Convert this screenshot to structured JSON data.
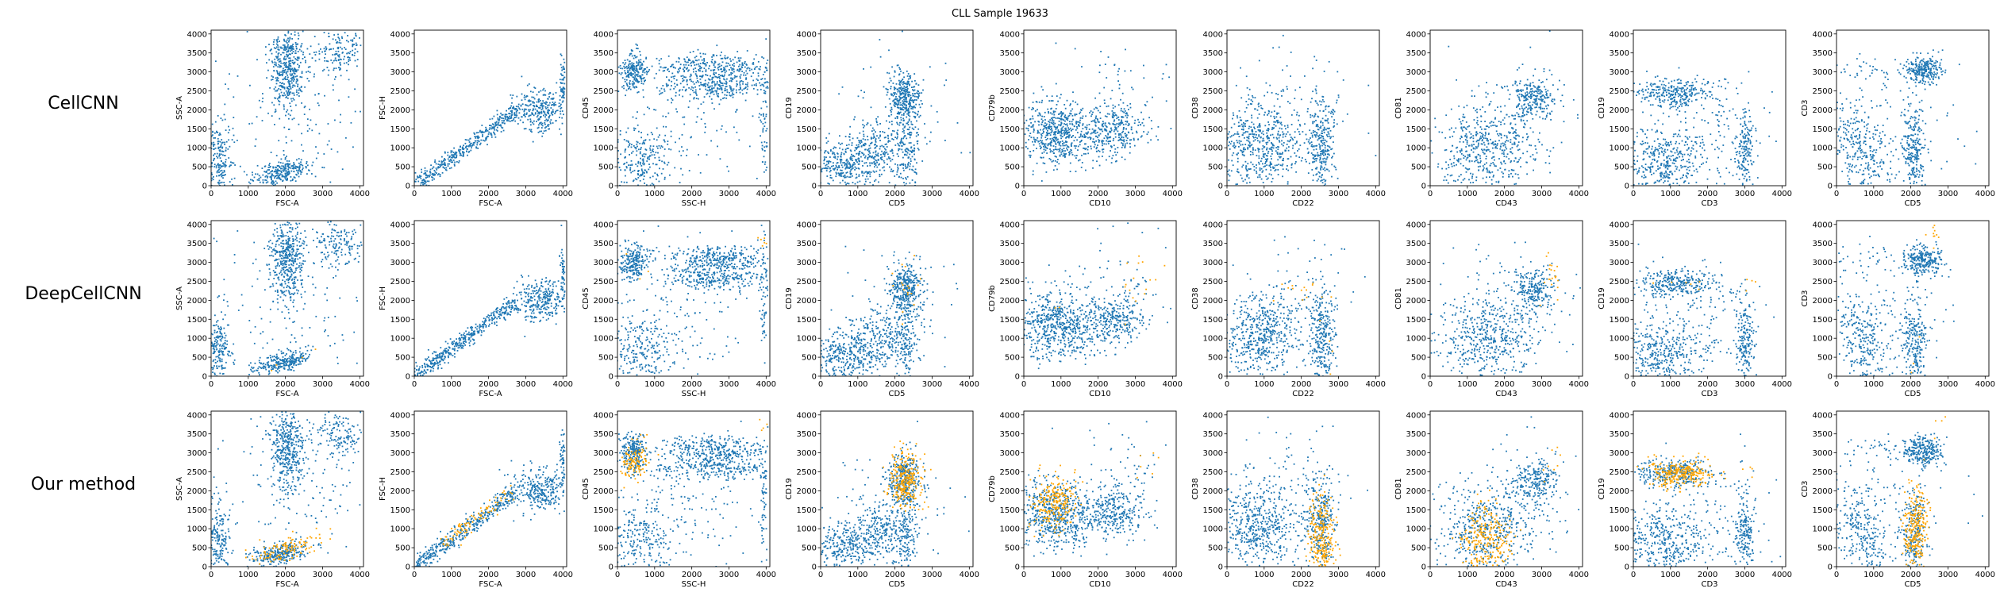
{
  "figure": {
    "title": "CLL Sample 19633",
    "rows": [
      "CellCNN",
      "DeepCellCNN",
      "Our method"
    ],
    "colors": {
      "background_points": "#1f77b4",
      "highlight_points": "#ffa500"
    }
  },
  "chart_data": {
    "type": "scatter",
    "title": "CLL Sample 19633",
    "row_labels": [
      "CellCNN",
      "DeepCellCNN",
      "Our method"
    ],
    "xlim": [
      0,
      4100
    ],
    "ylim": [
      0,
      4100
    ],
    "x_ticks": [
      0,
      1000,
      2000,
      3000,
      4000
    ],
    "y_ticks": [
      0,
      500,
      1000,
      1500,
      2000,
      2500,
      3000,
      3500,
      4000
    ],
    "series": [
      {
        "color": "#1f77b4"
      },
      {
        "color": "#ffa500"
      }
    ],
    "panels": [
      {
        "xlabel": "FSC-A",
        "ylabel": "SSC-A",
        "clusters": [
          {
            "x": 2050,
            "y": 3100,
            "sx": 230,
            "sy": 550,
            "n": 420
          },
          {
            "x": 1900,
            "y": 350,
            "sx": 380,
            "sy": 130,
            "n": 260,
            "rot": 0.25
          },
          {
            "x": 3500,
            "y": 3500,
            "sx": 380,
            "sy": 330,
            "n": 160
          },
          {
            "x": 200,
            "y": 700,
            "sx": 160,
            "sy": 550,
            "n": 200
          },
          {
            "x": 2200,
            "y": 2000,
            "sx": 1200,
            "sy": 1200,
            "n": 160
          }
        ],
        "highlight": [
          {
            "x": 2000,
            "y": 450,
            "sx": 500,
            "sy": 150,
            "n": [
              0,
              4,
              120
            ],
            "rot": 0.25
          }
        ]
      },
      {
        "xlabel": "FSC-A",
        "ylabel": "FSC-H",
        "clusters": [
          {
            "band": true,
            "x0": 0,
            "y0": 0,
            "x1": 2700,
            "y1": 1950,
            "spread": 110,
            "n": 420
          },
          {
            "x": 3400,
            "y": 2000,
            "sx": 380,
            "sy": 280,
            "n": 300
          },
          {
            "x": 4000,
            "y": 2700,
            "sx": 40,
            "sy": 400,
            "n": 60
          }
        ],
        "highlight": [
          {
            "band": true,
            "x0": 600,
            "y0": 500,
            "x1": 2600,
            "y1": 1950,
            "spread": 120,
            "n": [
              0,
              0,
              90
            ]
          }
        ]
      },
      {
        "xlabel": "SSC-H",
        "ylabel": "CD45",
        "clusters": [
          {
            "x": 450,
            "y": 3000,
            "sx": 180,
            "sy": 250,
            "n": 220
          },
          {
            "x": 2650,
            "y": 3100,
            "sx": 750,
            "sy": 180,
            "n": 320
          },
          {
            "x": 2650,
            "y": 2600,
            "sx": 750,
            "sy": 150,
            "n": 240
          },
          {
            "x": 600,
            "y": 700,
            "sx": 450,
            "sy": 450,
            "n": 240
          },
          {
            "x": 3950,
            "y": 1800,
            "sx": 60,
            "sy": 900,
            "n": 60
          },
          {
            "x": 1800,
            "y": 1600,
            "sx": 1100,
            "sy": 900,
            "n": 140
          }
        ],
        "highlight": [
          {
            "x": 450,
            "y": 2750,
            "sx": 170,
            "sy": 250,
            "n": [
              0,
              3,
              110
            ]
          },
          {
            "x": 3900,
            "y": 3600,
            "sx": 100,
            "sy": 150,
            "n": [
              0,
              6,
              4
            ]
          }
        ]
      },
      {
        "xlabel": "CD5",
        "ylabel": "CD19",
        "clusters": [
          {
            "x": 2250,
            "y": 2300,
            "sx": 220,
            "sy": 350,
            "n": 340
          },
          {
            "x": 650,
            "y": 550,
            "sx": 450,
            "sy": 320,
            "n": 300
          },
          {
            "x": 1550,
            "y": 950,
            "sx": 350,
            "sy": 380,
            "n": 220
          },
          {
            "x": 2300,
            "y": 900,
            "sx": 180,
            "sy": 500,
            "n": 150
          },
          {
            "x": 2000,
            "y": 1500,
            "sx": 900,
            "sy": 1000,
            "n": 80
          }
        ],
        "highlight": [
          {
            "x": 2300,
            "y": 2300,
            "sx": 220,
            "sy": 350,
            "n": [
              0,
              18,
              260
            ]
          }
        ]
      },
      {
        "xlabel": "CD10",
        "ylabel": "CD79b",
        "clusters": [
          {
            "x": 800,
            "y": 1350,
            "sx": 450,
            "sy": 450,
            "n": 480
          },
          {
            "x": 2500,
            "y": 1500,
            "sx": 380,
            "sy": 350,
            "n": 260
          },
          {
            "x": 1600,
            "y": 1300,
            "sx": 450,
            "sy": 350,
            "n": 140
          },
          {
            "x": 2500,
            "y": 2600,
            "sx": 900,
            "sy": 700,
            "n": 60
          }
        ],
        "highlight": [
          {
            "x": 800,
            "y": 1700,
            "sx": 300,
            "sy": 350,
            "n": [
              0,
              2,
              230
            ]
          },
          {
            "x": 3100,
            "y": 2600,
            "sx": 300,
            "sy": 500,
            "n": [
              0,
              16,
              6
            ]
          }
        ]
      },
      {
        "xlabel": "CD22",
        "ylabel": "CD38",
        "clusters": [
          {
            "x": 900,
            "y": 1100,
            "sx": 550,
            "sy": 550,
            "n": 520
          },
          {
            "x": 2550,
            "y": 1050,
            "sx": 180,
            "sy": 650,
            "n": 280
          },
          {
            "x": 1800,
            "y": 2000,
            "sx": 800,
            "sy": 900,
            "n": 100
          }
        ],
        "highlight": [
          {
            "x": 2550,
            "y": 800,
            "sx": 170,
            "sy": 600,
            "n": [
              0,
              4,
              260
            ]
          },
          {
            "x": 2000,
            "y": 2300,
            "sx": 500,
            "sy": 200,
            "n": [
              0,
              14,
              0
            ]
          }
        ]
      },
      {
        "xlabel": "CD43",
        "ylabel": "CD81",
        "clusters": [
          {
            "x": 1500,
            "y": 950,
            "sx": 650,
            "sy": 550,
            "n": 480,
            "rot": 0.5
          },
          {
            "x": 2800,
            "y": 2300,
            "sx": 300,
            "sy": 300,
            "n": 220
          },
          {
            "x": 2300,
            "y": 1700,
            "sx": 900,
            "sy": 800,
            "n": 100
          }
        ],
        "highlight": [
          {
            "x": 1500,
            "y": 700,
            "sx": 350,
            "sy": 450,
            "n": [
              0,
              0,
              260
            ]
          },
          {
            "x": 3300,
            "y": 2700,
            "sx": 150,
            "sy": 300,
            "n": [
              0,
              20,
              8
            ]
          }
        ]
      },
      {
        "xlabel": "CD3",
        "ylabel": "CD19",
        "clusters": [
          {
            "x": 1100,
            "y": 2450,
            "sx": 550,
            "sy": 180,
            "n": 300
          },
          {
            "x": 800,
            "y": 650,
            "sx": 600,
            "sy": 450,
            "n": 420
          },
          {
            "x": 3000,
            "y": 900,
            "sx": 120,
            "sy": 550,
            "n": 180
          },
          {
            "x": 2000,
            "y": 1500,
            "sx": 900,
            "sy": 700,
            "n": 100
          }
        ],
        "highlight": [
          {
            "x": 1300,
            "y": 2450,
            "sx": 450,
            "sy": 180,
            "n": [
              0,
              6,
              260
            ]
          },
          {
            "x": 3100,
            "y": 2500,
            "sx": 100,
            "sy": 150,
            "n": [
              0,
              4,
              4
            ]
          }
        ]
      },
      {
        "xlabel": "CD5",
        "ylabel": "CD3",
        "clusters": [
          {
            "x": 2350,
            "y": 3050,
            "sx": 250,
            "sy": 180,
            "n": 260
          },
          {
            "x": 650,
            "y": 900,
            "sx": 350,
            "sy": 700,
            "n": 300,
            "rot": 0.35
          },
          {
            "x": 2100,
            "y": 900,
            "sx": 160,
            "sy": 650,
            "n": 240
          },
          {
            "x": 1600,
            "y": 1500,
            "sx": 800,
            "sy": 800,
            "n": 80
          },
          {
            "x": 700,
            "y": 3100,
            "sx": 700,
            "sy": 200,
            "n": 40
          }
        ],
        "highlight": [
          {
            "x": 2150,
            "y": 1000,
            "sx": 150,
            "sy": 550,
            "n": [
              0,
              3,
              260
            ]
          },
          {
            "x": 2700,
            "y": 3700,
            "sx": 150,
            "sy": 200,
            "n": [
              0,
              10,
              4
            ]
          }
        ]
      }
    ]
  }
}
